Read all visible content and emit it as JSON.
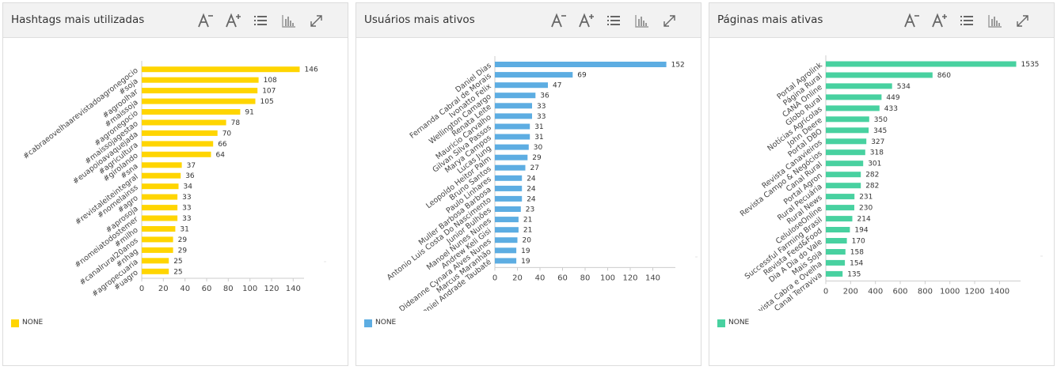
{
  "toolbar": {
    "icons": [
      "font-decrease-icon",
      "font-increase-icon",
      "list-icon",
      "bar-chart-icon",
      "expand-icon"
    ]
  },
  "panels": [
    {
      "title": "Hashtags mais utilizadas",
      "legend": "NONE",
      "color": "#ffd500",
      "chart_data": {
        "type": "bar",
        "orientation": "horizontal",
        "categories": [
          "#cabraeovelhaarevistadoagronegocio",
          "#soja",
          "#agroolhar",
          "#maissoja",
          "#agronegocio",
          "#maissojagestao",
          "#euapoioavaquejada",
          "#agricultura",
          "#girolando",
          "#sna",
          "#revistaleiteintegral",
          "#nomelainss",
          "#agro",
          "#aprosoja",
          "#nomeiatodostemer",
          "#milho",
          "#canalrural20anos",
          "#nhag",
          "#agropecuaria",
          "#uagro"
        ],
        "values": [
          146,
          108,
          107,
          105,
          91,
          78,
          70,
          66,
          64,
          37,
          36,
          34,
          33,
          33,
          33,
          31,
          29,
          29,
          25,
          25
        ],
        "xticks": [
          0,
          20,
          40,
          60,
          80,
          100,
          120,
          140
        ],
        "xlim": [
          0,
          150
        ],
        "grid": false,
        "legend_position": "bottom-left"
      }
    },
    {
      "title": "Usuários mais ativos",
      "legend": "NONE",
      "color": "#5dade2",
      "chart_data": {
        "type": "bar",
        "orientation": "horizontal",
        "categories": [
          "Daniel Dias",
          "Fernanda Cabral de Morais",
          "Ivonatto Felix",
          "Wellington Camargo",
          "Renata Leite",
          "Mauricio Carvalho",
          "Gilvan Silva Passos",
          "Marya Campos",
          "Lucas Jung",
          "Leopoldo Heitor Palm",
          "Bruno Santos",
          "Paulo Linhares",
          "Muller Barbosa Barbosa",
          "Antonio Luis Costa Do Nascimento",
          "Junior Bulhões",
          "Manoel Nunes Nunes",
          "Andrew Keli Gisi",
          "Dideanne Cynara Alves Nunes",
          "Marcus Maranhão",
          "Daniel Andrade Taubaté"
        ],
        "values": [
          152,
          69,
          47,
          36,
          33,
          33,
          31,
          31,
          30,
          29,
          27,
          24,
          24,
          24,
          23,
          21,
          21,
          20,
          19,
          19
        ],
        "xticks": [
          0,
          20,
          40,
          60,
          80,
          100,
          120,
          140
        ],
        "xlim": [
          0,
          160
        ],
        "grid": false,
        "legend_position": "bottom-left"
      }
    },
    {
      "title": "Páginas mais ativas",
      "legend": "NONE",
      "color": "#48d1a0",
      "chart_data": {
        "type": "bar",
        "orientation": "horizontal",
        "categories": [
          "Portal Agrolink",
          "Página Rural",
          "CANA Online",
          "Globo Rural",
          "Notícias Agrícolas",
          "John Deere",
          "Portal DBO",
          "Revista Canavieiros",
          "Revista Campo & Negócios",
          "Canal Rural",
          "Portal Agron",
          "Rural Pecuária",
          "Rural News",
          "CeluloseOnline",
          "Successful Farming Brasil",
          "Revista Feed&Food",
          "Dia A Dia do Vale",
          "Mais Soja",
          "Revista Cabra e Ovelha",
          "Canal Terraviva"
        ],
        "values": [
          1535,
          860,
          534,
          449,
          433,
          350,
          345,
          327,
          318,
          301,
          282,
          282,
          231,
          230,
          214,
          194,
          170,
          158,
          154,
          135
        ],
        "xticks": [
          0,
          200,
          400,
          600,
          800,
          1000,
          1200,
          1400
        ],
        "xlim": [
          0,
          1570
        ],
        "grid": false,
        "legend_position": "bottom-left"
      }
    }
  ]
}
